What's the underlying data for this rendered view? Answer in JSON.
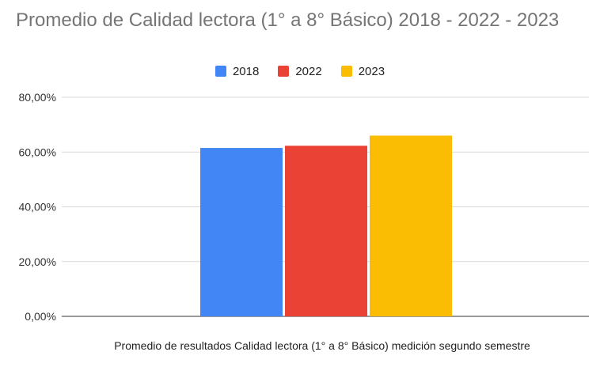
{
  "chart_data": {
    "type": "bar",
    "title": "Promedio de Calidad lectora (1° a 8° Básico) 2018 - 2022 - 2023",
    "categories": [
      "Promedio de resultados Calidad lectora (1° a 8° Básico) medición segundo semestre"
    ],
    "series": [
      {
        "name": "2018",
        "values": [
          61.5
        ],
        "color": "#4285f4"
      },
      {
        "name": "2022",
        "values": [
          62.3
        ],
        "color": "#ea4335"
      },
      {
        "name": "2023",
        "values": [
          66.0
        ],
        "color": "#fbbc04"
      }
    ],
    "ylim": [
      0,
      80
    ],
    "yticks": [
      "0,00%",
      "20,00%",
      "40,00%",
      "60,00%",
      "80,00%"
    ],
    "ytick_values": [
      0,
      20,
      40,
      60,
      80
    ],
    "legend_position": "top",
    "grid": true
  }
}
